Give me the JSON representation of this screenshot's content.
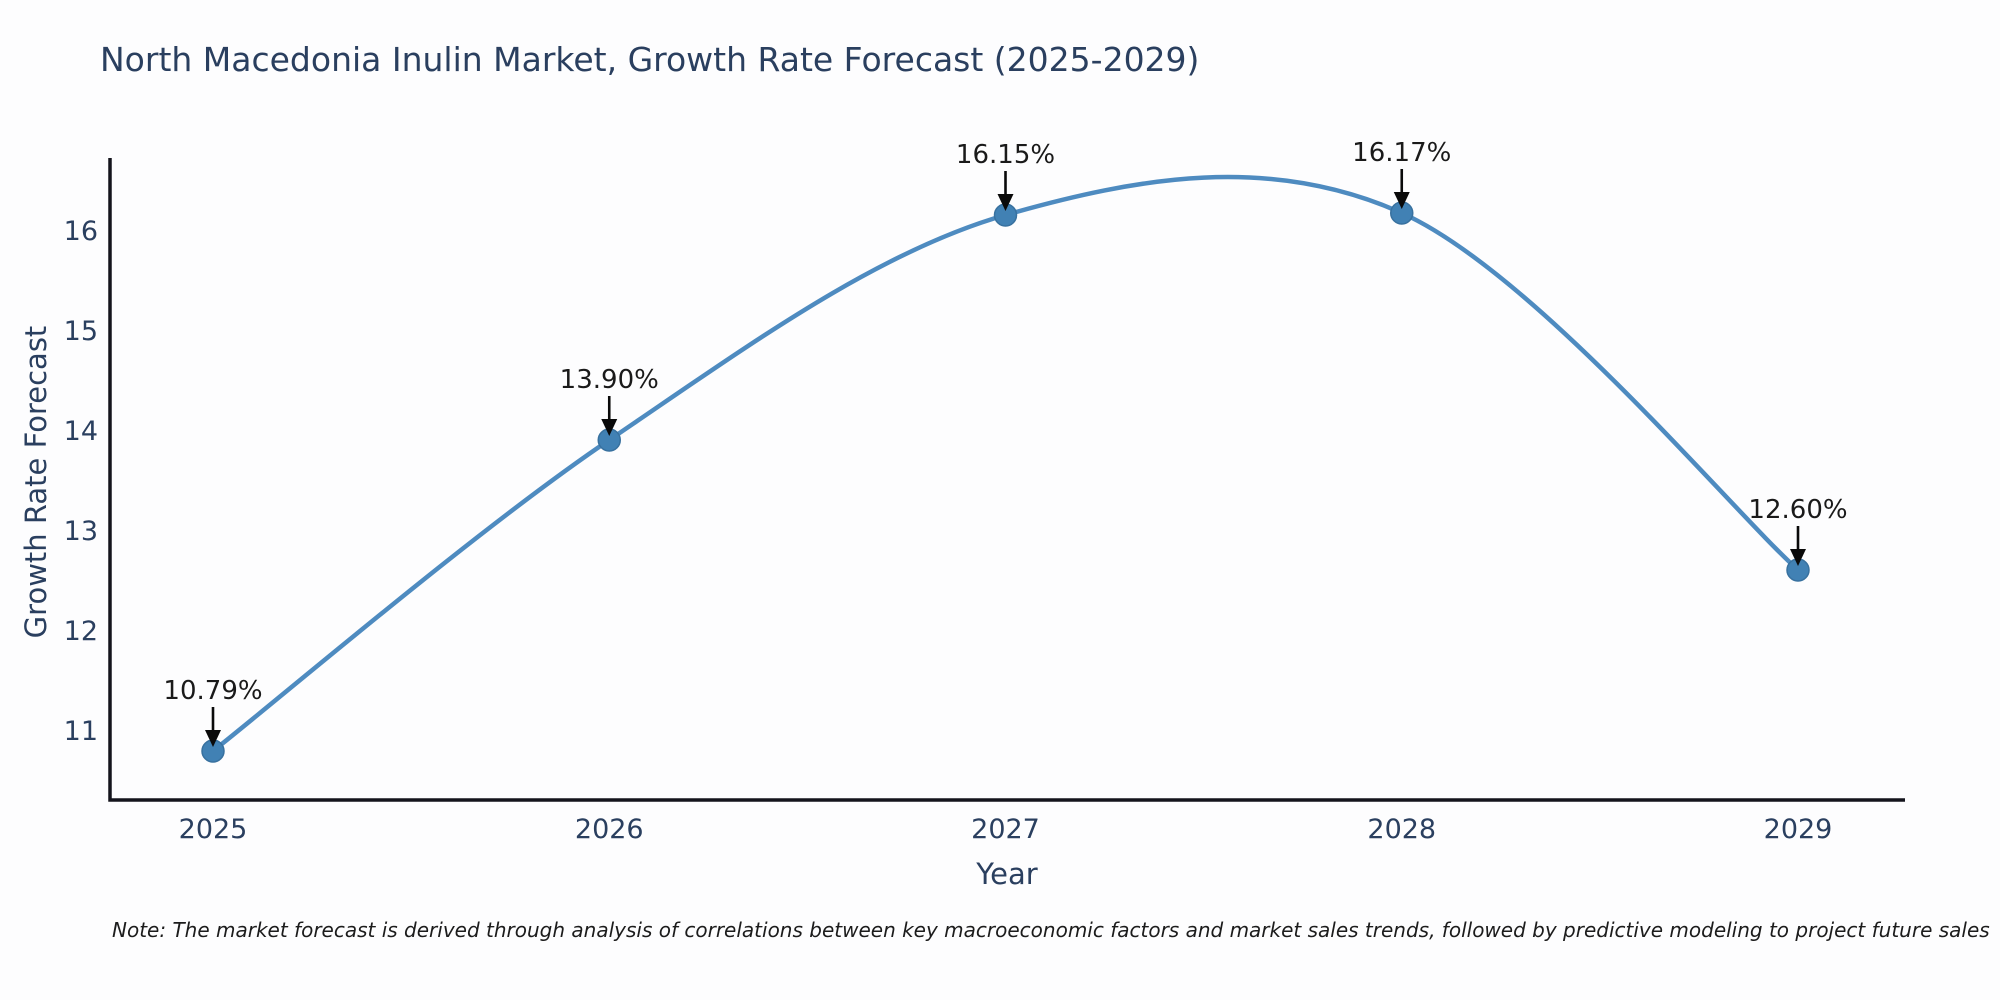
{
  "title": "North Macedonia Inulin Market, Growth Rate Forecast (2025-2029)",
  "note": "Note: The market forecast is derived through analysis of correlations between key macroeconomic factors and market sales trends, followed by predictive modeling to project future sales",
  "chart_data": {
    "type": "line",
    "line_shape": "spline",
    "title": "North Macedonia Inulin Market, Growth Rate Forecast (2025-2029)",
    "xlabel": "Year",
    "ylabel": "Growth Rate Forecast",
    "categories": [
      "2025",
      "2026",
      "2027",
      "2028",
      "2029"
    ],
    "values": [
      10.79,
      13.9,
      16.15,
      16.17,
      12.6
    ],
    "point_labels": [
      "10.79%",
      "13.90%",
      "16.15%",
      "16.17%",
      "12.60%"
    ],
    "yticks": [
      11,
      12,
      13,
      14,
      15,
      16
    ],
    "ylim": [
      10.3,
      16.72
    ],
    "grid": false,
    "legend": "none",
    "annotations": "black arrows pointing down from each percentage label to its data point",
    "line_color": "#4e8bc0",
    "marker_color": "#4181b4",
    "marker_edge_color": "#38719f",
    "arrow_color": "#0a0a0a",
    "axis_color": "#14141c",
    "tick_label_color": "#2a3f5f",
    "annotation_text_color": "#1a1a1a"
  }
}
